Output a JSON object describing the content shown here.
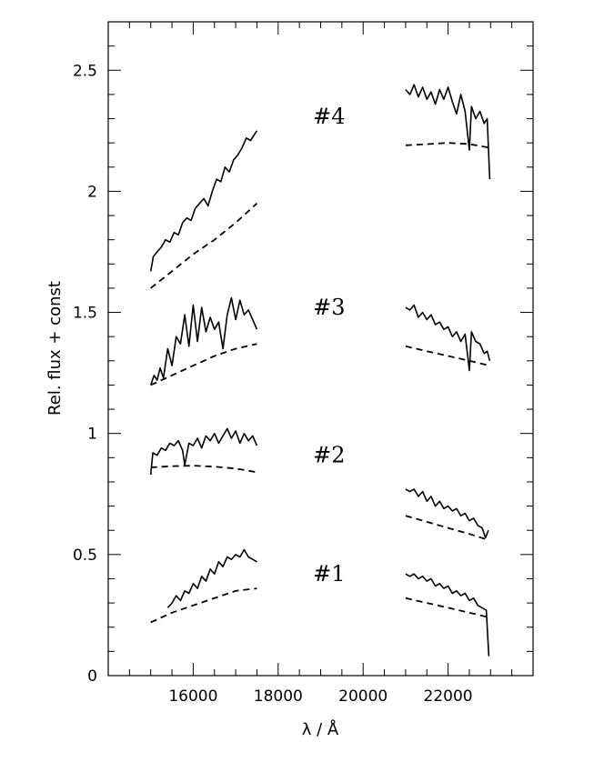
{
  "chart_data": {
    "type": "line",
    "title": "",
    "xlabel": "λ / Å",
    "ylabel": "Rel. flux + const",
    "xlim": [
      14000,
      24000
    ],
    "ylim": [
      0,
      2.7
    ],
    "xticks": [
      16000,
      18000,
      20000,
      22000
    ],
    "xtick_labels": [
      "16000",
      "18000",
      "20000",
      "22000"
    ],
    "yticks": [
      0,
      0.5,
      1,
      1.5,
      2,
      2.5
    ],
    "ytick_labels": [
      "0",
      "0.5",
      "1",
      "1.5",
      "2",
      "2.5"
    ],
    "x_minor_step": 500,
    "y_minor_step": 0.1,
    "grid": false,
    "legend": "none",
    "annotations": [
      {
        "text": "#4",
        "x": 19200,
        "y": 2.28
      },
      {
        "text": "#3",
        "x": 19200,
        "y": 1.49
      },
      {
        "text": "#2",
        "x": 19200,
        "y": 0.88
      },
      {
        "text": "#1",
        "x": 19200,
        "y": 0.39
      }
    ],
    "series": [
      {
        "style": "solid",
        "segments": [
          [
            [
              15000,
              1.67
            ],
            [
              15060,
              1.73
            ],
            [
              15150,
              1.75
            ],
            [
              15250,
              1.77
            ],
            [
              15350,
              1.8
            ],
            [
              15450,
              1.79
            ],
            [
              15550,
              1.83
            ],
            [
              15650,
              1.82
            ],
            [
              15750,
              1.87
            ],
            [
              15850,
              1.89
            ],
            [
              15950,
              1.88
            ],
            [
              16050,
              1.93
            ],
            [
              16150,
              1.95
            ],
            [
              16250,
              1.97
            ],
            [
              16350,
              1.94
            ],
            [
              16450,
              2.0
            ],
            [
              16550,
              2.05
            ],
            [
              16650,
              2.04
            ],
            [
              16750,
              2.1
            ],
            [
              16850,
              2.08
            ],
            [
              16950,
              2.13
            ],
            [
              17050,
              2.15
            ],
            [
              17150,
              2.18
            ],
            [
              17250,
              2.22
            ],
            [
              17350,
              2.21
            ],
            [
              17500,
              2.25
            ]
          ],
          [
            [
              21000,
              2.42
            ],
            [
              21100,
              2.4
            ],
            [
              21200,
              2.44
            ],
            [
              21300,
              2.39
            ],
            [
              21400,
              2.43
            ],
            [
              21500,
              2.38
            ],
            [
              21600,
              2.41
            ],
            [
              21700,
              2.36
            ],
            [
              21800,
              2.42
            ],
            [
              21900,
              2.38
            ],
            [
              22000,
              2.43
            ],
            [
              22100,
              2.37
            ],
            [
              22200,
              2.32
            ],
            [
              22300,
              2.4
            ],
            [
              22400,
              2.33
            ],
            [
              22500,
              2.17
            ],
            [
              22550,
              2.35
            ],
            [
              22650,
              2.3
            ],
            [
              22750,
              2.33
            ],
            [
              22850,
              2.28
            ],
            [
              22920,
              2.3
            ],
            [
              22980,
              2.05
            ]
          ]
        ]
      },
      {
        "style": "dashed",
        "segments": [
          [
            [
              15000,
              1.6
            ],
            [
              15500,
              1.67
            ],
            [
              16000,
              1.74
            ],
            [
              16500,
              1.8
            ],
            [
              17000,
              1.87
            ],
            [
              17500,
              1.95
            ]
          ],
          [
            [
              21000,
              2.19
            ],
            [
              21500,
              2.195
            ],
            [
              22000,
              2.2
            ],
            [
              22500,
              2.195
            ],
            [
              22980,
              2.18
            ]
          ]
        ]
      },
      {
        "style": "solid",
        "segments": [
          [
            [
              15000,
              1.2
            ],
            [
              15080,
              1.24
            ],
            [
              15150,
              1.22
            ],
            [
              15220,
              1.27
            ],
            [
              15300,
              1.23
            ],
            [
              15400,
              1.35
            ],
            [
              15500,
              1.28
            ],
            [
              15600,
              1.4
            ],
            [
              15700,
              1.37
            ],
            [
              15800,
              1.49
            ],
            [
              15900,
              1.36
            ],
            [
              16000,
              1.53
            ],
            [
              16100,
              1.38
            ],
            [
              16200,
              1.52
            ],
            [
              16300,
              1.42
            ],
            [
              16400,
              1.48
            ],
            [
              16500,
              1.43
            ],
            [
              16600,
              1.46
            ],
            [
              16700,
              1.35
            ],
            [
              16800,
              1.49
            ],
            [
              16900,
              1.56
            ],
            [
              17000,
              1.47
            ],
            [
              17100,
              1.55
            ],
            [
              17200,
              1.49
            ],
            [
              17300,
              1.51
            ],
            [
              17400,
              1.47
            ],
            [
              17500,
              1.43
            ]
          ],
          [
            [
              21000,
              1.52
            ],
            [
              21100,
              1.51
            ],
            [
              21200,
              1.53
            ],
            [
              21300,
              1.48
            ],
            [
              21400,
              1.5
            ],
            [
              21500,
              1.47
            ],
            [
              21600,
              1.49
            ],
            [
              21700,
              1.45
            ],
            [
              21800,
              1.46
            ],
            [
              21900,
              1.43
            ],
            [
              22000,
              1.44
            ],
            [
              22100,
              1.4
            ],
            [
              22200,
              1.42
            ],
            [
              22300,
              1.38
            ],
            [
              22400,
              1.41
            ],
            [
              22500,
              1.26
            ],
            [
              22550,
              1.42
            ],
            [
              22650,
              1.38
            ],
            [
              22750,
              1.37
            ],
            [
              22850,
              1.33
            ],
            [
              22920,
              1.34
            ],
            [
              22980,
              1.3
            ]
          ]
        ]
      },
      {
        "style": "dashed",
        "segments": [
          [
            [
              15000,
              1.2
            ],
            [
              15500,
              1.24
            ],
            [
              16000,
              1.28
            ],
            [
              16500,
              1.32
            ],
            [
              17000,
              1.35
            ],
            [
              17500,
              1.37
            ]
          ],
          [
            [
              21000,
              1.36
            ],
            [
              21500,
              1.34
            ],
            [
              22000,
              1.32
            ],
            [
              22500,
              1.3
            ],
            [
              22980,
              1.28
            ]
          ]
        ]
      },
      {
        "style": "solid",
        "segments": [
          [
            [
              15000,
              0.83
            ],
            [
              15050,
              0.92
            ],
            [
              15150,
              0.91
            ],
            [
              15250,
              0.94
            ],
            [
              15350,
              0.93
            ],
            [
              15450,
              0.96
            ],
            [
              15550,
              0.95
            ],
            [
              15650,
              0.97
            ],
            [
              15750,
              0.93
            ],
            [
              15800,
              0.87
            ],
            [
              15900,
              0.96
            ],
            [
              16000,
              0.95
            ],
            [
              16100,
              0.98
            ],
            [
              16200,
              0.94
            ],
            [
              16300,
              0.99
            ],
            [
              16400,
              0.97
            ],
            [
              16500,
              1.0
            ],
            [
              16600,
              0.96
            ],
            [
              16700,
              0.99
            ],
            [
              16800,
              1.02
            ],
            [
              16900,
              0.98
            ],
            [
              17000,
              1.01
            ],
            [
              17100,
              0.96
            ],
            [
              17200,
              1.0
            ],
            [
              17300,
              0.97
            ],
            [
              17400,
              0.99
            ],
            [
              17500,
              0.95
            ]
          ],
          [
            [
              21000,
              0.77
            ],
            [
              21100,
              0.76
            ],
            [
              21200,
              0.77
            ],
            [
              21300,
              0.74
            ],
            [
              21400,
              0.76
            ],
            [
              21500,
              0.72
            ],
            [
              21600,
              0.74
            ],
            [
              21700,
              0.7
            ],
            [
              21800,
              0.72
            ],
            [
              21900,
              0.69
            ],
            [
              22000,
              0.7
            ],
            [
              22100,
              0.68
            ],
            [
              22200,
              0.69
            ],
            [
              22300,
              0.66
            ],
            [
              22400,
              0.67
            ],
            [
              22500,
              0.64
            ],
            [
              22600,
              0.65
            ],
            [
              22700,
              0.62
            ],
            [
              22800,
              0.61
            ],
            [
              22880,
              0.57
            ],
            [
              22950,
              0.6
            ]
          ]
        ]
      },
      {
        "style": "dashed",
        "segments": [
          [
            [
              15000,
              0.86
            ],
            [
              15500,
              0.865
            ],
            [
              16000,
              0.867
            ],
            [
              16500,
              0.863
            ],
            [
              17000,
              0.855
            ],
            [
              17500,
              0.84
            ]
          ],
          [
            [
              21000,
              0.66
            ],
            [
              21500,
              0.635
            ],
            [
              22000,
              0.61
            ],
            [
              22500,
              0.585
            ],
            [
              22950,
              0.56
            ]
          ]
        ]
      },
      {
        "style": "solid",
        "segments": [
          [
            [
              15400,
              0.28
            ],
            [
              15500,
              0.3
            ],
            [
              15600,
              0.33
            ],
            [
              15700,
              0.31
            ],
            [
              15800,
              0.35
            ],
            [
              15900,
              0.34
            ],
            [
              16000,
              0.38
            ],
            [
              16100,
              0.36
            ],
            [
              16200,
              0.41
            ],
            [
              16300,
              0.39
            ],
            [
              16400,
              0.44
            ],
            [
              16500,
              0.42
            ],
            [
              16600,
              0.47
            ],
            [
              16700,
              0.45
            ],
            [
              16800,
              0.49
            ],
            [
              16900,
              0.48
            ],
            [
              17000,
              0.5
            ],
            [
              17100,
              0.49
            ],
            [
              17200,
              0.52
            ],
            [
              17300,
              0.49
            ],
            [
              17400,
              0.48
            ],
            [
              17500,
              0.47
            ]
          ],
          [
            [
              21000,
              0.42
            ],
            [
              21100,
              0.41
            ],
            [
              21200,
              0.42
            ],
            [
              21300,
              0.4
            ],
            [
              21400,
              0.41
            ],
            [
              21500,
              0.39
            ],
            [
              21600,
              0.4
            ],
            [
              21700,
              0.37
            ],
            [
              21800,
              0.38
            ],
            [
              21900,
              0.36
            ],
            [
              22000,
              0.37
            ],
            [
              22100,
              0.34
            ],
            [
              22200,
              0.35
            ],
            [
              22300,
              0.33
            ],
            [
              22400,
              0.34
            ],
            [
              22500,
              0.31
            ],
            [
              22600,
              0.32
            ],
            [
              22700,
              0.29
            ],
            [
              22800,
              0.28
            ],
            [
              22900,
              0.27
            ],
            [
              22960,
              0.08
            ]
          ]
        ]
      },
      {
        "style": "dashed",
        "segments": [
          [
            [
              15000,
              0.22
            ],
            [
              15500,
              0.26
            ],
            [
              16000,
              0.29
            ],
            [
              16500,
              0.32
            ],
            [
              17000,
              0.35
            ],
            [
              17500,
              0.36
            ]
          ],
          [
            [
              21000,
              0.32
            ],
            [
              21500,
              0.3
            ],
            [
              22000,
              0.28
            ],
            [
              22500,
              0.26
            ],
            [
              22980,
              0.24
            ]
          ]
        ]
      }
    ]
  }
}
